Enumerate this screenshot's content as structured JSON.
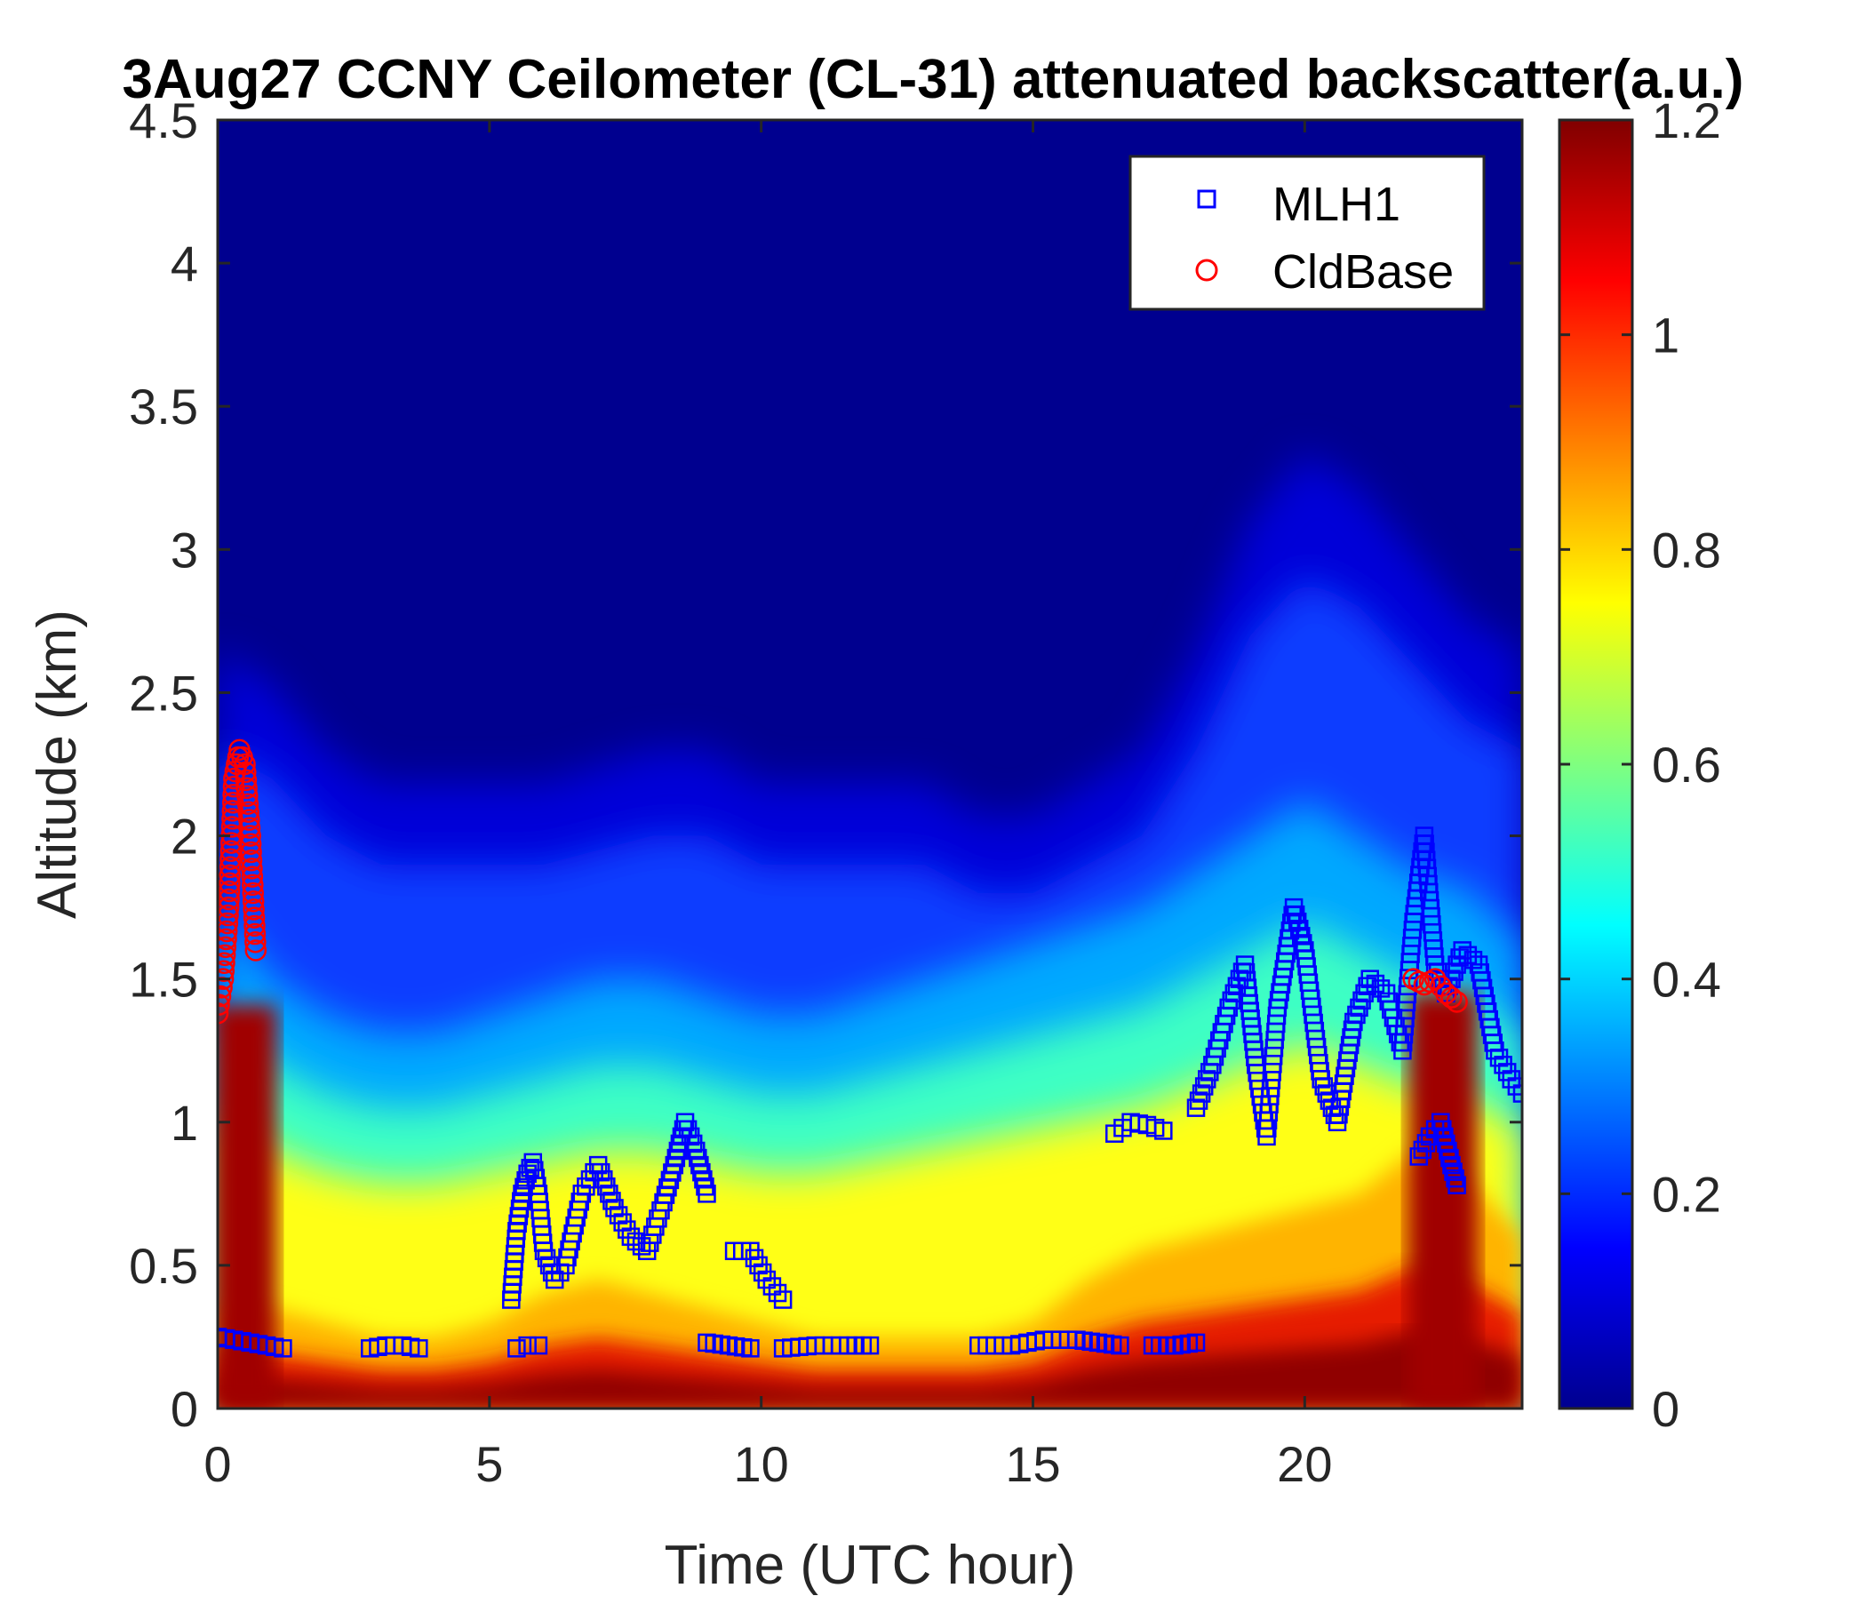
{
  "chart_data": {
    "type": "heatmap",
    "title": "3Aug27 CCNY Ceilometer (CL-31) attenuated backscatter(a.u.)",
    "xlabel": "Time (UTC hour)",
    "ylabel": "Altitude (km)",
    "xlim": [
      0,
      24
    ],
    "ylim": [
      0,
      4.5
    ],
    "xticks": [
      "0",
      "5",
      "10",
      "15",
      "20"
    ],
    "xtick_values": [
      0,
      5,
      10,
      15,
      20
    ],
    "yticks": [
      "0",
      "0.5",
      "1",
      "1.5",
      "2",
      "2.5",
      "3",
      "3.5",
      "4",
      "4.5"
    ],
    "ytick_values": [
      0,
      0.5,
      1,
      1.5,
      2,
      2.5,
      3,
      3.5,
      4,
      4.5
    ],
    "colorbar": {
      "min": 0,
      "max": 1.2,
      "colormap": "jet",
      "ticks": [
        "0",
        "0.2",
        "0.4",
        "0.6",
        "0.8",
        "1",
        "1.2"
      ],
      "tick_values": [
        0,
        0.2,
        0.4,
        0.6,
        0.8,
        1.0,
        1.2
      ]
    },
    "legend": {
      "position": "top-right",
      "entries": [
        {
          "name": "MLH1",
          "marker": "square",
          "color": "#0000ff"
        },
        {
          "name": "CldBase",
          "marker": "circle",
          "color": "#ff0000"
        }
      ]
    },
    "backscatter_profile": {
      "description_free": true,
      "time_hours": [
        0,
        1,
        2,
        3,
        4,
        5,
        6,
        7,
        8,
        9,
        10,
        11,
        12,
        13,
        14,
        15,
        16,
        17,
        18,
        19,
        20,
        21,
        22,
        23,
        24
      ],
      "surface_layer_top_km": [
        0.35,
        0.35,
        0.3,
        0.25,
        0.25,
        0.3,
        0.4,
        0.45,
        0.4,
        0.35,
        0.3,
        0.25,
        0.25,
        0.25,
        0.25,
        0.3,
        0.45,
        0.55,
        0.6,
        0.65,
        0.7,
        0.75,
        0.9,
        0.8,
        0.6
      ],
      "moist_layer_top_km": [
        1.4,
        1.2,
        1.1,
        1.05,
        1.05,
        1.1,
        1.15,
        1.2,
        1.2,
        1.15,
        1.1,
        1.1,
        1.15,
        1.2,
        1.25,
        1.3,
        1.35,
        1.4,
        1.5,
        1.6,
        1.7,
        1.6,
        1.5,
        1.45,
        1.3
      ],
      "aerosol_top_km": [
        2.3,
        2.2,
        2.0,
        1.9,
        1.9,
        1.9,
        1.9,
        1.95,
        2.0,
        2.0,
        1.9,
        1.9,
        1.9,
        1.9,
        1.8,
        1.8,
        1.9,
        2.0,
        2.3,
        2.7,
        2.9,
        2.8,
        2.6,
        2.4,
        2.3
      ]
    },
    "series": [
      {
        "name": "MLH1",
        "segments": [
          {
            "x": [
              0.0,
              0.3,
              0.6,
              0.9,
              1.2
            ],
            "y": [
              0.25,
              0.24,
              0.23,
              0.22,
              0.21
            ]
          },
          {
            "x": [
              2.8,
              3.1,
              3.4,
              3.7
            ],
            "y": [
              0.21,
              0.22,
              0.22,
              0.21
            ]
          },
          {
            "x": [
              5.4,
              5.5,
              5.6,
              5.7,
              5.8,
              5.9,
              6.0,
              6.2,
              6.4,
              6.7,
              7.0,
              7.3,
              7.6,
              7.9,
              8.2,
              8.4,
              8.6,
              8.8,
              9.0
            ],
            "y": [
              0.38,
              0.62,
              0.75,
              0.82,
              0.86,
              0.75,
              0.55,
              0.45,
              0.5,
              0.75,
              0.85,
              0.7,
              0.6,
              0.55,
              0.72,
              0.85,
              1.0,
              0.9,
              0.75
            ]
          },
          {
            "x": [
              5.5,
              5.7,
              5.9
            ],
            "y": [
              0.21,
              0.22,
              0.22
            ]
          },
          {
            "x": [
              9.0,
              9.4,
              9.8
            ],
            "y": [
              0.23,
              0.22,
              0.21
            ]
          },
          {
            "x": [
              9.5,
              9.8,
              10.1,
              10.4
            ],
            "y": [
              0.55,
              0.55,
              0.45,
              0.38
            ]
          },
          {
            "x": [
              10.4,
              11.0,
              11.6,
              12.0
            ],
            "y": [
              0.21,
              0.22,
              0.22,
              0.22
            ]
          },
          {
            "x": [
              14.0,
              14.6,
              15.2,
              15.8,
              16.2,
              16.6
            ],
            "y": [
              0.22,
              0.22,
              0.24,
              0.24,
              0.23,
              0.22
            ]
          },
          {
            "x": [
              17.2,
              17.6,
              18.0
            ],
            "y": [
              0.22,
              0.22,
              0.23
            ]
          },
          {
            "x": [
              16.5,
              16.8,
              17.1,
              17.4
            ],
            "y": [
              0.96,
              1.0,
              0.99,
              0.97
            ]
          },
          {
            "x": [
              18.0,
              18.3,
              18.6,
              18.9,
              19.1,
              19.3,
              19.5,
              19.8,
              20.0,
              20.3,
              20.6,
              20.9,
              21.2,
              21.5,
              21.8,
              22.0,
              22.2,
              22.4,
              22.6,
              22.9,
              23.2,
              23.5,
              23.8,
              24.0
            ],
            "y": [
              1.05,
              1.2,
              1.4,
              1.55,
              1.2,
              0.95,
              1.4,
              1.75,
              1.6,
              1.15,
              1.0,
              1.35,
              1.5,
              1.45,
              1.25,
              1.7,
              2.0,
              1.55,
              1.45,
              1.6,
              1.55,
              1.25,
              1.15,
              1.1
            ]
          },
          {
            "x": [
              22.1,
              22.3,
              22.5,
              22.7,
              22.8
            ],
            "y": [
              0.88,
              0.95,
              1.0,
              0.85,
              0.78
            ]
          }
        ]
      },
      {
        "name": "CldBase",
        "segments": [
          {
            "x": [
              0.0,
              0.1,
              0.2,
              0.3,
              0.4,
              0.5,
              0.6,
              0.7
            ],
            "y": [
              1.38,
              1.5,
              1.75,
              2.2,
              2.3,
              2.25,
              2.0,
              1.6
            ]
          },
          {
            "x": [
              22.0,
              22.2,
              22.4,
              22.6,
              22.8
            ],
            "y": [
              1.5,
              1.48,
              1.5,
              1.45,
              1.42
            ]
          }
        ]
      }
    ]
  }
}
